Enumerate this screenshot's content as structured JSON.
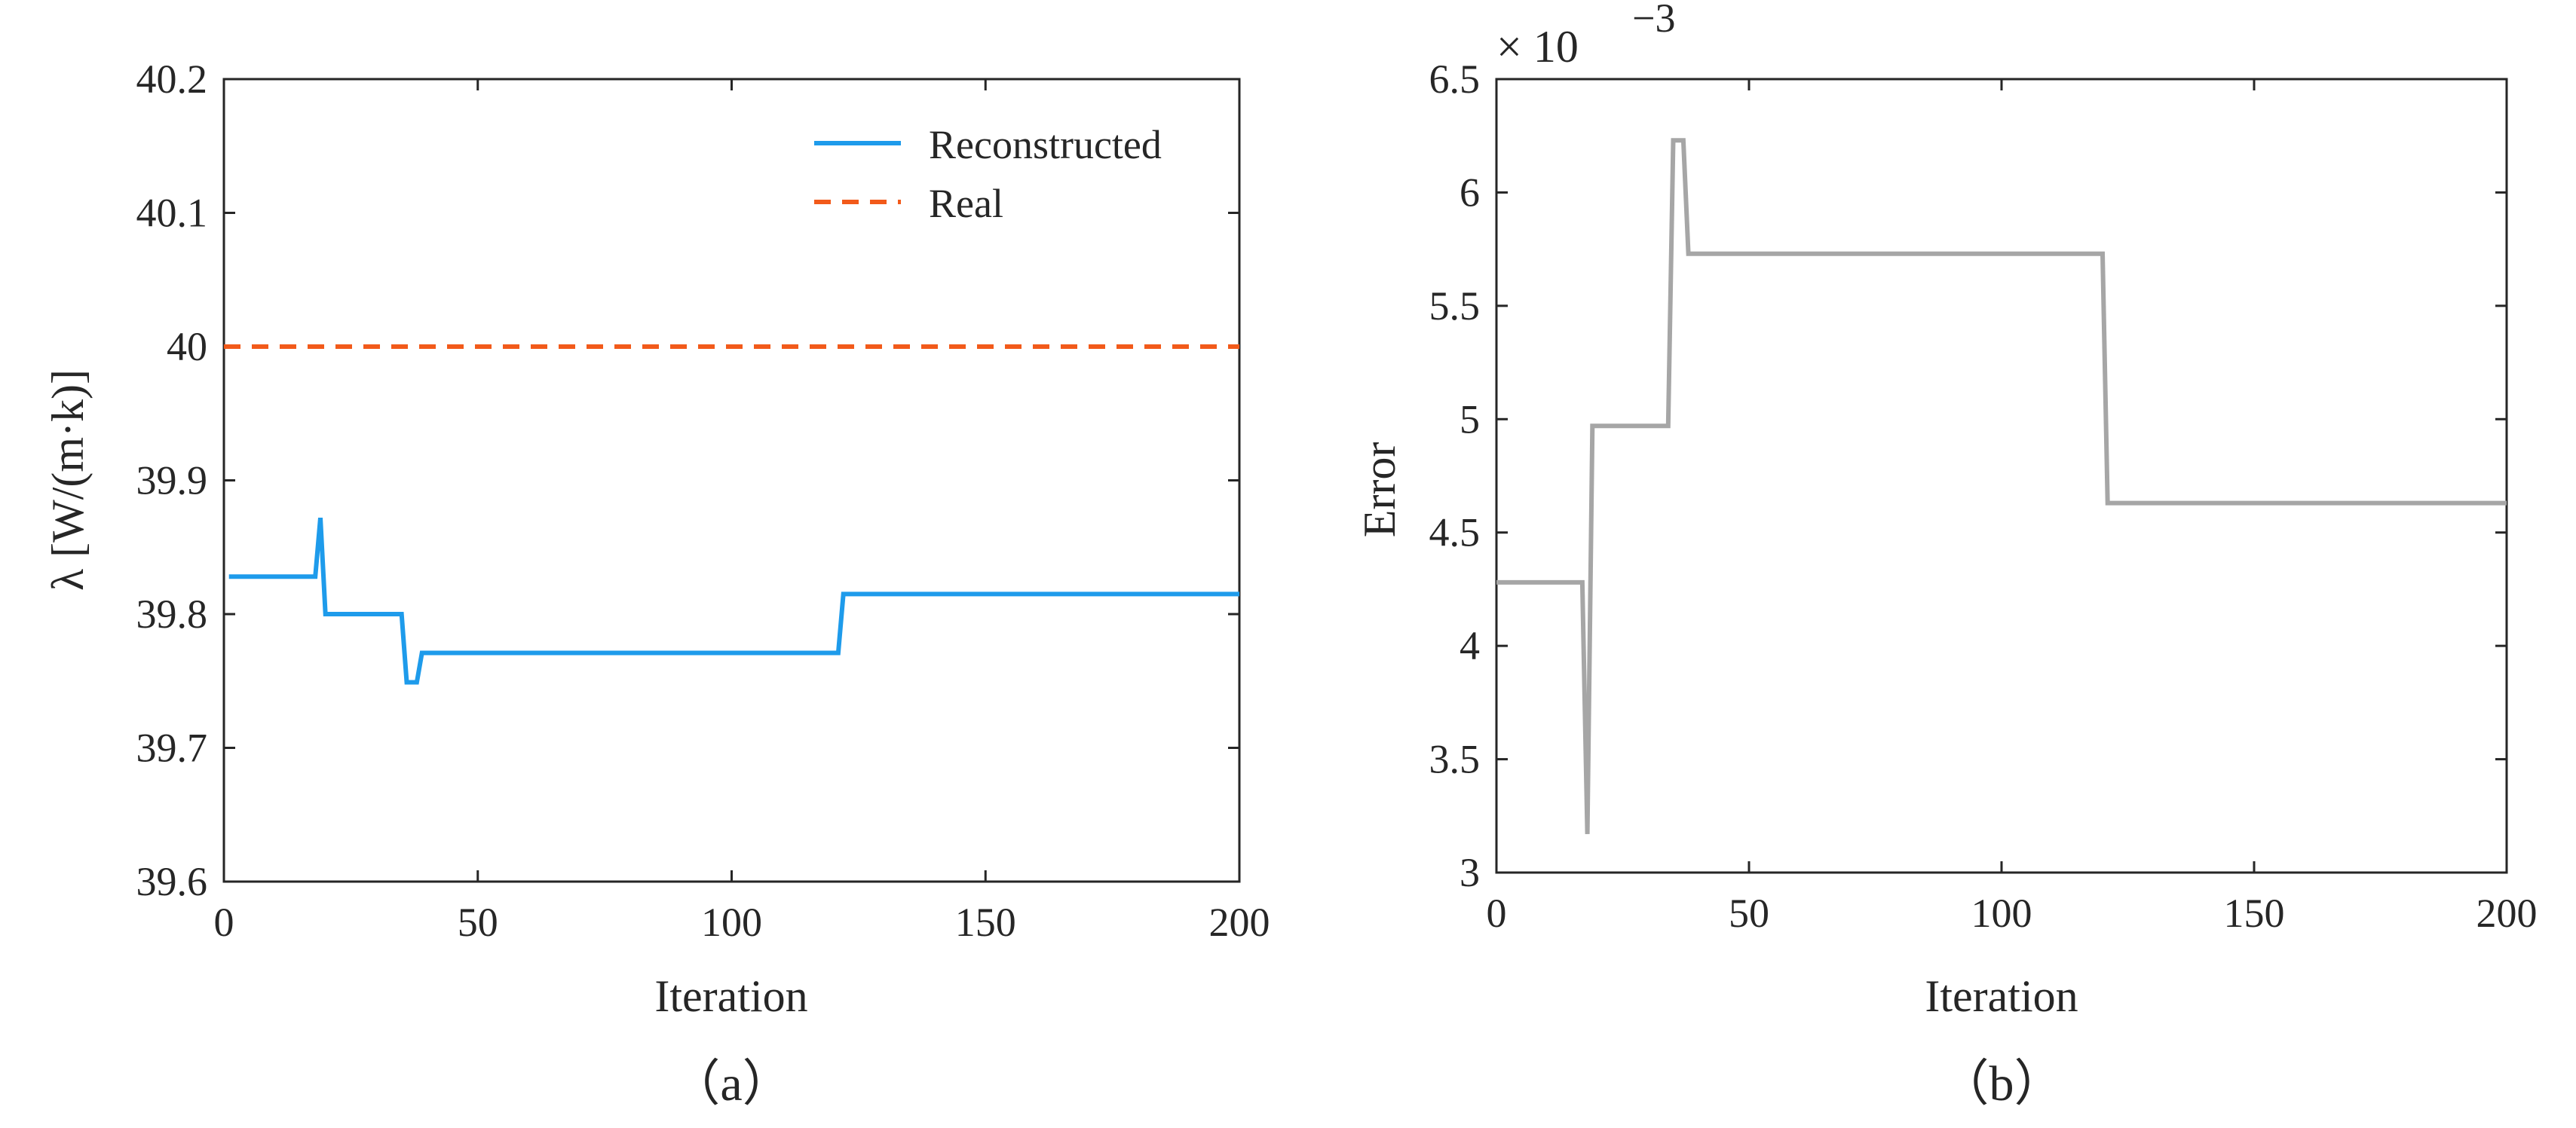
{
  "colors": {
    "reconstructed": "#1E9BEB",
    "real": "#F25A1A",
    "error": "#A6A6A6",
    "axis": "#262626"
  },
  "chart_data": [
    {
      "type": "line",
      "caption": "（a）",
      "xlabel": "Iteration",
      "ylabel": "λ [W/(m·k)]",
      "xlim": [
        0,
        200
      ],
      "ylim": [
        39.6,
        40.2
      ],
      "xticks": [
        "0",
        "50",
        "100",
        "150",
        "200"
      ],
      "yticks": [
        "39.6",
        "39.7",
        "39.8",
        "39.9",
        "40",
        "40.1",
        "40.2"
      ],
      "grid": false,
      "legend_position": "top-right",
      "series": [
        {
          "name": "Reconstructed",
          "style": "solid",
          "x": [
            1,
            18,
            19,
            20,
            35,
            36,
            38,
            39,
            121,
            122,
            200
          ],
          "y": [
            39.828,
            39.828,
            39.872,
            39.8,
            39.8,
            39.749,
            39.749,
            39.771,
            39.771,
            39.815,
            39.815
          ]
        },
        {
          "name": "Real",
          "style": "dashed",
          "x": [
            0,
            200
          ],
          "y": [
            40.0,
            40.0
          ]
        }
      ]
    },
    {
      "type": "line",
      "caption": "（b）",
      "xlabel": "Iteration",
      "ylabel": "Error",
      "multiplier": "× 10",
      "multiplier_exp": "−3",
      "xlim": [
        0,
        200
      ],
      "ylim": [
        3,
        6.5
      ],
      "xticks": [
        "0",
        "50",
        "100",
        "150",
        "200"
      ],
      "yticks": [
        "3",
        "3.5",
        "4",
        "4.5",
        "5",
        "5.5",
        "6",
        "6.5"
      ],
      "grid": false,
      "series": [
        {
          "style": "solid",
          "x": [
            0,
            17,
            18,
            19,
            34,
            35,
            37,
            38,
            120,
            121,
            200
          ],
          "y": [
            4.28,
            4.28,
            3.17,
            4.97,
            4.97,
            6.23,
            6.23,
            5.73,
            5.73,
            4.63,
            4.63
          ]
        }
      ]
    }
  ]
}
